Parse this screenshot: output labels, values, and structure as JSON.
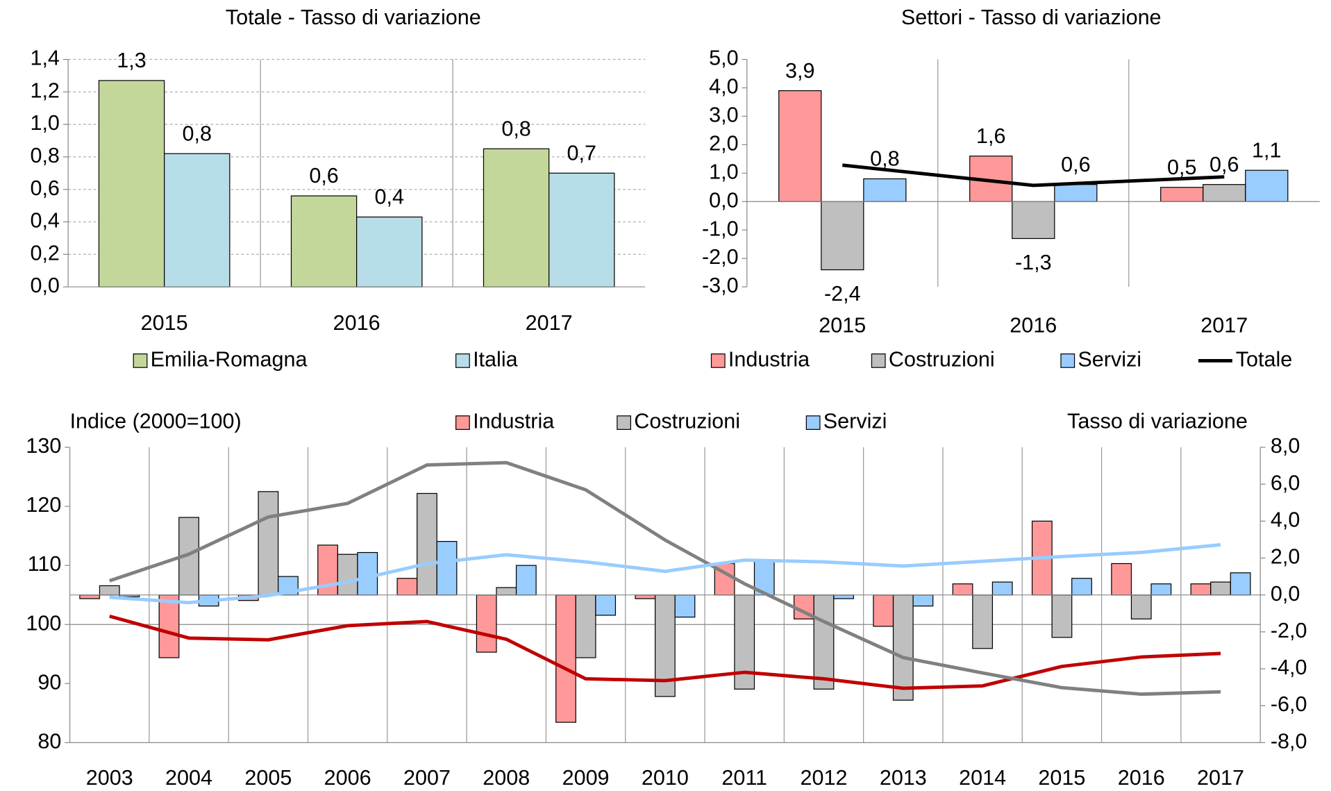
{
  "chart_data": [
    {
      "type": "bar",
      "title": "Totale - Tasso di variazione",
      "title_color": "#ff0000",
      "categories": [
        "2015",
        "2016",
        "2017"
      ],
      "series": [
        {
          "name": "Emilia-Romagna",
          "color": "#c4d79b",
          "values": [
            1.27,
            0.56,
            0.85
          ],
          "value_labels": [
            "1,3",
            "0,6",
            "0,8"
          ]
        },
        {
          "name": "Italia",
          "color": "#b7dde8",
          "values": [
            0.82,
            0.43,
            0.7
          ],
          "value_labels": [
            "0,8",
            "0,4",
            "0,7"
          ]
        }
      ],
      "ylim": [
        0,
        1.4
      ],
      "yticks": [
        {
          "value": 0,
          "label": "0,0"
        },
        {
          "value": 0.2,
          "label": "0,2"
        },
        {
          "value": 0.4,
          "label": "0,4"
        },
        {
          "value": 0.6,
          "label": "0,6"
        },
        {
          "value": 0.8,
          "label": "0,8"
        },
        {
          "value": 1.0,
          "label": "1,0"
        },
        {
          "value": 1.2,
          "label": "1,2"
        },
        {
          "value": 1.4,
          "label": "1,4"
        }
      ],
      "grid": true,
      "legend": "bottom"
    },
    {
      "type": "bar_line",
      "title": "Settori - Tasso di variazione",
      "title_color": "#ff0000",
      "negative_color": "#ff0000",
      "categories": [
        "2015",
        "2016",
        "2017"
      ],
      "series": [
        {
          "name": "Industria",
          "color": "#ff9999",
          "values": [
            3.9,
            1.6,
            0.5
          ],
          "value_labels": [
            "3,9",
            "1,6",
            "0,5"
          ]
        },
        {
          "name": "Costruzioni",
          "color": "#bfbfbf",
          "values": [
            -2.4,
            -1.3,
            0.6
          ],
          "value_labels": [
            "-2,4",
            "-1,3",
            "0,6"
          ]
        },
        {
          "name": "Servizi",
          "color": "#99ccff",
          "values": [
            0.8,
            0.6,
            1.1
          ],
          "value_labels": [
            "0,8",
            "0,6",
            "1,1"
          ]
        },
        {
          "name": "Totale",
          "type": "line",
          "color": "#000000",
          "values": [
            1.28,
            0.57,
            0.87
          ]
        }
      ],
      "ylim": [
        -3,
        5
      ],
      "yticks": [
        {
          "value": -3,
          "label": "-3,0"
        },
        {
          "value": -2,
          "label": "-2,0"
        },
        {
          "value": -1,
          "label": "-1,0"
        },
        {
          "value": 0,
          "label": "0,0"
        },
        {
          "value": 1,
          "label": "1,0"
        },
        {
          "value": 2,
          "label": "2,0"
        },
        {
          "value": 3,
          "label": "3,0"
        },
        {
          "value": 4,
          "label": "4,0"
        },
        {
          "value": 5,
          "label": "5,0"
        }
      ],
      "legend": "bottom"
    },
    {
      "type": "combo",
      "y_label": "Indice (2000=100)",
      "y2_label": "Tasso di variazione",
      "label_color": "#ff0000",
      "negative_color": "#ff0000",
      "categories": [
        "2003",
        "2004",
        "2005",
        "2006",
        "2007",
        "2008",
        "2009",
        "2010",
        "2011",
        "2012",
        "2013",
        "2014",
        "2015",
        "2016",
        "2017"
      ],
      "series": [
        {
          "name": "Industria",
          "color": "#ff9999",
          "line_color": "#c00000",
          "axis": "y2",
          "values": [
            -0.2,
            -3.4,
            -0.3,
            2.7,
            0.9,
            -3.1,
            -6.9,
            -0.2,
            1.7,
            -1.3,
            -1.7,
            0.6,
            4.0,
            1.7,
            0.6
          ],
          "index": [
            101.4,
            97.7,
            97.4,
            99.8,
            100.5,
            97.5,
            90.8,
            90.5,
            91.9,
            90.8,
            89.2,
            89.6,
            92.9,
            94.5,
            95.1
          ]
        },
        {
          "name": "Costruzioni",
          "color": "#bfbfbf",
          "line_color": "#808080",
          "axis": "y2",
          "values": [
            0.5,
            4.2,
            5.6,
            2.2,
            5.5,
            0.4,
            -3.4,
            -5.5,
            -5.1,
            -5.1,
            -5.7,
            -2.9,
            -2.3,
            -1.3,
            0.7
          ],
          "index": [
            107.4,
            111.9,
            118.2,
            120.5,
            127.0,
            127.4,
            122.8,
            114.3,
            106.9,
            100.5,
            94.4,
            91.8,
            89.3,
            88.2,
            88.6
          ]
        },
        {
          "name": "Servizi",
          "color": "#99ccff",
          "line_color": "#99ccff",
          "axis": "y2",
          "values": [
            -0.1,
            -0.6,
            1.0,
            2.3,
            2.9,
            1.6,
            -1.1,
            -1.2,
            1.9,
            -0.2,
            -0.6,
            0.7,
            0.9,
            0.6,
            1.2
          ],
          "index": [
            104.6,
            103.7,
            104.9,
            107.2,
            110.3,
            111.8,
            110.6,
            109.0,
            110.9,
            110.6,
            109.9,
            110.7,
            111.5,
            112.2,
            113.5
          ]
        }
      ],
      "ylim": [
        80,
        130
      ],
      "yticks": [
        80,
        90,
        100,
        110,
        120,
        130
      ],
      "y2lim": [
        -8,
        8
      ],
      "y2ticks": [
        {
          "value": -8,
          "label": "-8,0"
        },
        {
          "value": -6,
          "label": "-6,0"
        },
        {
          "value": -4,
          "label": "-4,0"
        },
        {
          "value": -2,
          "label": "-2,0"
        },
        {
          "value": 0,
          "label": "0,0"
        },
        {
          "value": 2,
          "label": "2,0"
        },
        {
          "value": 4,
          "label": "4,0"
        },
        {
          "value": 6,
          "label": "6,0"
        },
        {
          "value": 8,
          "label": "8,0"
        }
      ],
      "legend": "top"
    }
  ]
}
